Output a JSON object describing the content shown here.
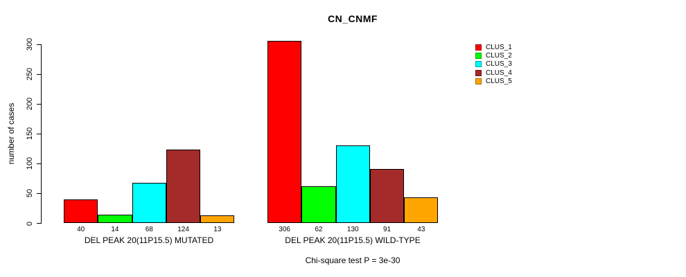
{
  "title": "CN_CNMF",
  "ylabel": "number of cases",
  "footer": "Chi-square test P = 3e-30",
  "chart_data": {
    "type": "bar",
    "title": "CN_CNMF",
    "ylabel": "number of cases",
    "xlabel": "",
    "annotation": "Chi-square test P = 3e-30",
    "ylim": [
      0,
      300
    ],
    "yticks": [
      0,
      50,
      100,
      150,
      200,
      250,
      300
    ],
    "grid": false,
    "legend_position": "right",
    "series": [
      "CLUS_1",
      "CLUS_2",
      "CLUS_3",
      "CLUS_4",
      "CLUS_5"
    ],
    "colors": [
      "#FF0000",
      "#00FF00",
      "#00FFFF",
      "#A52A2A",
      "#FFA500"
    ],
    "groups": [
      {
        "label": "DEL PEAK 20(11P15.5) MUTATED",
        "values": [
          40,
          14,
          68,
          124,
          13
        ]
      },
      {
        "label": "DEL PEAK 20(11P15.5) WILD-TYPE",
        "values": [
          306,
          62,
          130,
          91,
          43
        ]
      }
    ]
  },
  "legend": {
    "items": [
      {
        "label": "CLUS_1",
        "color": "#FF0000"
      },
      {
        "label": "CLUS_2",
        "color": "#00FF00"
      },
      {
        "label": "CLUS_3",
        "color": "#00FFFF"
      },
      {
        "label": "CLUS_4",
        "color": "#A52A2A"
      },
      {
        "label": "CLUS_5",
        "color": "#FFA500"
      }
    ]
  }
}
